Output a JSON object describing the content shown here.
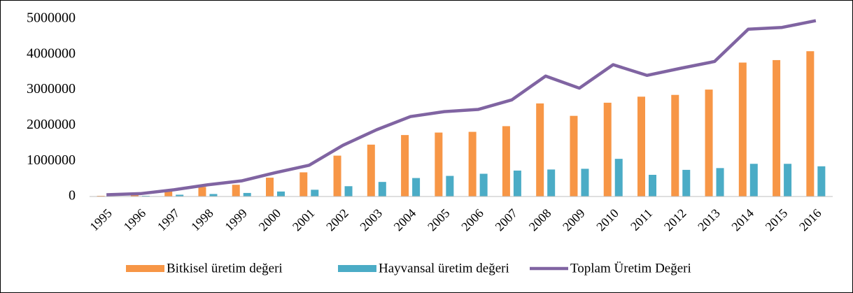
{
  "chart_data": {
    "type": "bar_line",
    "categories": [
      "1995",
      "1996",
      "1997",
      "1998",
      "1999",
      "2000",
      "2001",
      "2002",
      "2003",
      "2004",
      "2005",
      "2006",
      "2007",
      "2008",
      "2009",
      "2010",
      "2011",
      "2012",
      "2013",
      "2014",
      "2015",
      "2016"
    ],
    "series": [
      {
        "name": "Bitkisel üretim değeri",
        "color": "#f79646",
        "type": "bar",
        "values": [
          20000,
          50000,
          140000,
          270000,
          330000,
          530000,
          680000,
          1150000,
          1460000,
          1730000,
          1800000,
          1820000,
          1980000,
          2620000,
          2270000,
          2640000,
          2810000,
          2860000,
          3010000,
          3770000,
          3840000,
          4090000
        ]
      },
      {
        "name": "Hayvansal üretim değeri",
        "color": "#4bacc6",
        "type": "bar",
        "values": [
          10000,
          20000,
          50000,
          70000,
          100000,
          140000,
          190000,
          290000,
          410000,
          520000,
          580000,
          640000,
          730000,
          760000,
          780000,
          1060000,
          610000,
          750000,
          800000,
          920000,
          920000,
          850000
        ]
      },
      {
        "name": "Toplam Üretim Değeri",
        "color": "#8064a2",
        "type": "line",
        "values": [
          50000,
          80000,
          190000,
          330000,
          440000,
          670000,
          880000,
          1440000,
          1880000,
          2250000,
          2390000,
          2450000,
          2720000,
          3390000,
          3050000,
          3710000,
          3410000,
          3610000,
          3800000,
          4710000,
          4760000,
          4950000
        ]
      }
    ],
    "ylim": [
      0,
      5000000
    ],
    "yticks": [
      0,
      1000000,
      2000000,
      3000000,
      4000000,
      5000000
    ],
    "grid": false,
    "legend": "bottom"
  }
}
